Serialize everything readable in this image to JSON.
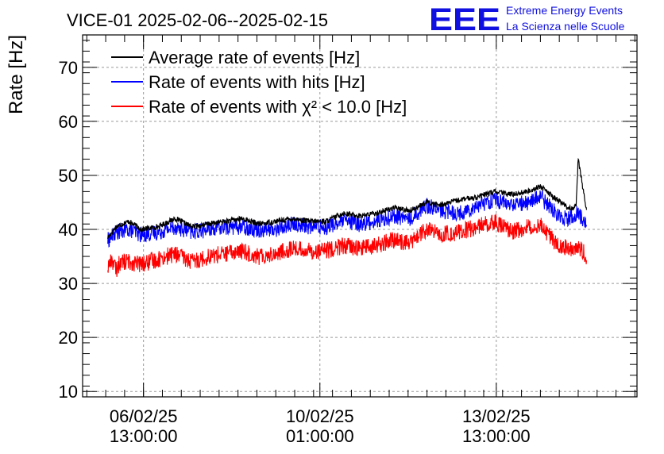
{
  "chart_data": {
    "type": "line",
    "title": "VICE-01 2025-02-06--2025-02-15",
    "ylabel": "Rate [Hz]",
    "xlabel": "",
    "ylim": [
      9,
      76
    ],
    "yticks": [
      10,
      20,
      30,
      40,
      50,
      60,
      70
    ],
    "grid": true,
    "legend_position": "top-left",
    "x_ticks": [
      {
        "date": "2025-02-06 13:00:00",
        "label_date": "06/02/25",
        "label_time": "13:00:00"
      },
      {
        "date": "2025-02-10 01:00:00",
        "label_date": "10/02/25",
        "label_time": "01:00:00"
      },
      {
        "date": "2025-02-13 13:00:00",
        "label_date": "13/02/25",
        "label_time": "13:00:00"
      }
    ],
    "xlim": [
      "2025-02-05 08:00",
      "2025-02-16 08:00"
    ],
    "series": [
      {
        "name": "Average rate of events [Hz]",
        "color": "#000000",
        "noise": 0.5,
        "x": [
          "2025-02-05 20:00",
          "2025-02-06 00:00",
          "2025-02-06 06:00",
          "2025-02-06 12:00",
          "2025-02-06 20:00",
          "2025-02-07 04:00",
          "2025-02-07 12:00",
          "2025-02-07 20:00",
          "2025-02-08 04:00",
          "2025-02-08 12:00",
          "2025-02-08 20:00",
          "2025-02-09 04:00",
          "2025-02-09 12:00",
          "2025-02-09 20:00",
          "2025-02-10 04:00",
          "2025-02-10 12:00",
          "2025-02-10 20:00",
          "2025-02-11 04:00",
          "2025-02-11 12:00",
          "2025-02-11 20:00",
          "2025-02-12 04:00",
          "2025-02-12 10:00",
          "2025-02-12 20:00",
          "2025-02-13 04:00",
          "2025-02-13 12:00",
          "2025-02-13 20:00",
          "2025-02-14 04:00",
          "2025-02-14 10:00",
          "2025-02-14 16:00",
          "2025-02-14 20:00",
          "2025-02-14 23:00",
          "2025-02-15 02:00",
          "2025-02-15 03:00",
          "2025-02-15 04:00",
          "2025-02-15 08:00"
        ],
        "y": [
          38.5,
          40.5,
          41.5,
          40.0,
          40.5,
          42.0,
          40.5,
          41.0,
          41.5,
          42.0,
          41.0,
          41.5,
          42.0,
          41.5,
          41.5,
          43.0,
          42.5,
          43.0,
          44.0,
          43.5,
          45.0,
          44.5,
          45.5,
          46.0,
          47.0,
          46.5,
          47.0,
          48.0,
          46.0,
          45.0,
          44.0,
          44.0,
          44.5,
          53.0,
          43.5
        ]
      },
      {
        "name": "Rate of events with hits [Hz]",
        "color": "#0000ff",
        "noise": 1.5,
        "x": [
          "2025-02-05 20:00",
          "2025-02-06 00:00",
          "2025-02-06 06:00",
          "2025-02-06 12:00",
          "2025-02-06 20:00",
          "2025-02-07 04:00",
          "2025-02-07 12:00",
          "2025-02-07 20:00",
          "2025-02-08 04:00",
          "2025-02-08 12:00",
          "2025-02-08 20:00",
          "2025-02-09 04:00",
          "2025-02-09 12:00",
          "2025-02-09 20:00",
          "2025-02-10 04:00",
          "2025-02-10 12:00",
          "2025-02-10 20:00",
          "2025-02-11 04:00",
          "2025-02-11 12:00",
          "2025-02-11 20:00",
          "2025-02-12 04:00",
          "2025-02-12 10:00",
          "2025-02-12 20:00",
          "2025-02-13 04:00",
          "2025-02-13 12:00",
          "2025-02-13 20:00",
          "2025-02-14 04:00",
          "2025-02-14 10:00",
          "2025-02-14 16:00",
          "2025-02-14 20:00",
          "2025-02-14 23:00",
          "2025-02-15 02:00",
          "2025-02-15 04:00",
          "2025-02-15 08:00"
        ],
        "y": [
          38.0,
          39.5,
          40.0,
          39.0,
          39.5,
          40.5,
          39.5,
          40.0,
          40.5,
          40.5,
          40.0,
          40.0,
          41.0,
          40.5,
          40.5,
          41.5,
          41.0,
          41.5,
          42.5,
          42.0,
          44.5,
          43.5,
          43.0,
          44.5,
          45.5,
          44.5,
          45.0,
          46.0,
          43.5,
          42.5,
          42.0,
          42.5,
          43.0,
          41.0
        ]
      },
      {
        "name": "Rate of events with χ² < 10.0 [Hz]",
        "color": "#ff0000",
        "noise": 1.6,
        "x": [
          "2025-02-05 20:00",
          "2025-02-05 22:00",
          "2025-02-06 00:00",
          "2025-02-06 02:00",
          "2025-02-06 06:00",
          "2025-02-06 12:00",
          "2025-02-06 20:00",
          "2025-02-07 04:00",
          "2025-02-07 12:00",
          "2025-02-07 20:00",
          "2025-02-08 04:00",
          "2025-02-08 12:00",
          "2025-02-08 20:00",
          "2025-02-09 04:00",
          "2025-02-09 12:00",
          "2025-02-09 20:00",
          "2025-02-10 04:00",
          "2025-02-10 12:00",
          "2025-02-10 20:00",
          "2025-02-11 04:00",
          "2025-02-11 12:00",
          "2025-02-11 20:00",
          "2025-02-12 04:00",
          "2025-02-12 10:00",
          "2025-02-12 20:00",
          "2025-02-13 04:00",
          "2025-02-13 12:00",
          "2025-02-13 20:00",
          "2025-02-14 04:00",
          "2025-02-14 10:00",
          "2025-02-14 16:00",
          "2025-02-14 20:00",
          "2025-02-14 23:00",
          "2025-02-15 02:00",
          "2025-02-15 04:00",
          "2025-02-15 08:00"
        ],
        "y": [
          33.0,
          34.5,
          32.5,
          34.0,
          34.0,
          33.5,
          34.5,
          35.5,
          34.0,
          35.0,
          35.5,
          36.0,
          35.0,
          35.5,
          36.5,
          36.0,
          36.0,
          37.0,
          36.5,
          37.0,
          38.0,
          37.5,
          40.0,
          39.0,
          39.5,
          40.5,
          41.5,
          39.5,
          40.5,
          41.0,
          38.0,
          37.0,
          36.5,
          36.5,
          37.0,
          35.0
        ]
      }
    ]
  },
  "logo": {
    "text": "EEE",
    "line1": "Extreme Energy Events",
    "line2": "La Scienza nelle Scuole",
    "color": "#1010e0"
  }
}
